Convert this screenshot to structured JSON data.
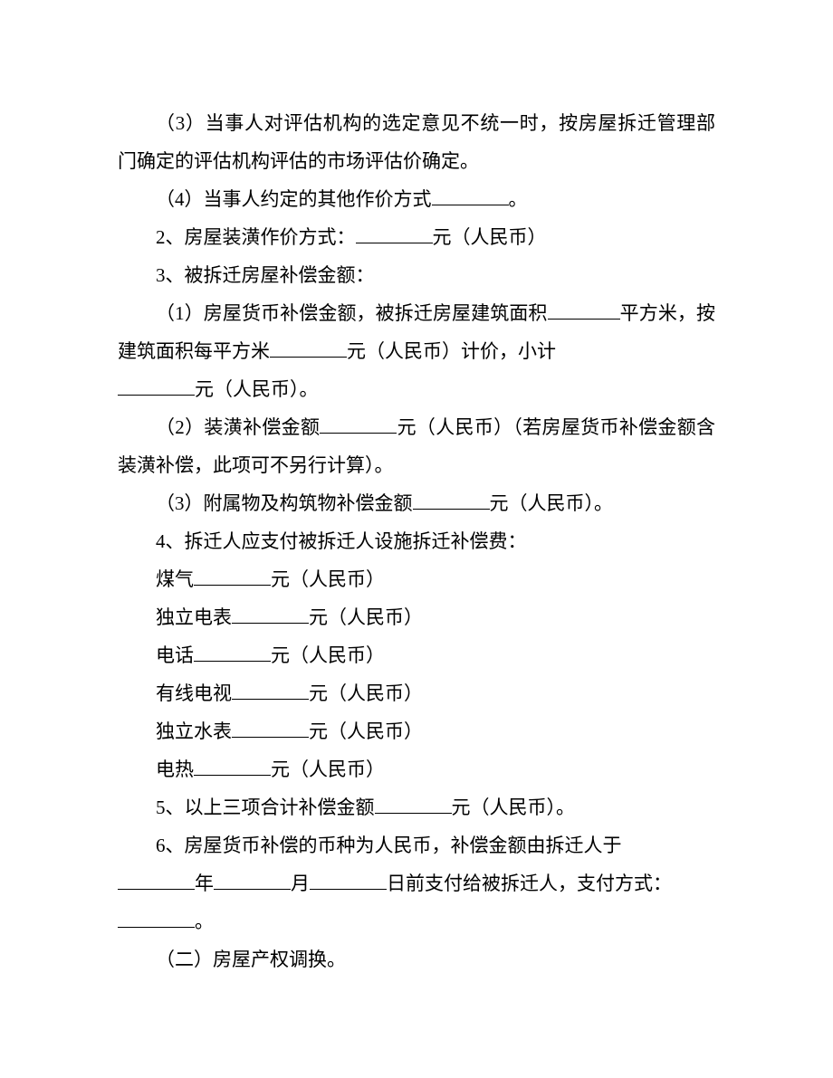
{
  "paragraphs": {
    "p1": "（3）当事人对评估机构的选定意见不统一时，按房屋拆迁管理部门确定的评估机构评估的市场评估价确定。",
    "p2a": "（4）当事人约定的其他作价方式",
    "p2b": "。",
    "p3a": "2、房屋装潢作价方式：",
    "p3b": "元（人民币）",
    "p4": "3、被拆迁房屋补偿金额：",
    "p5a": "（1）房屋货币补偿金额，被拆迁房屋建筑面积",
    "p5b": "平方米，按建筑面积每平方米",
    "p5c": "元（人民币）计价，小计",
    "p5d": "元（人民币）。",
    "p6a": "（2）装潢补偿金额",
    "p6b": "元（人民币）（若房屋货币补偿金额含装潢补偿，此项可不另行计算）。",
    "p7a": "（3）附属物及构筑物补偿金额",
    "p7b": "元（人民币）。",
    "p8": "4、拆迁人应支付被拆迁人设施拆迁补偿费：",
    "p9a": "煤气",
    "p9b": "元（人民币）",
    "p10a": "独立电表",
    "p10b": "元（人民币）",
    "p11a": "电话",
    "p11b": "元（人民币）",
    "p12a": "有线电视",
    "p12b": "元（人民币）",
    "p13a": "独立水表",
    "p13b": "元（人民币）",
    "p14a": "电热",
    "p14b": "元（人民币）",
    "p15a": "5、以上三项合计补偿金额",
    "p15b": "元（人民币）。",
    "p16a": "6、房屋货币补偿的币种为人民币，补偿金额由拆迁人于",
    "p16b": "年",
    "p16c": "月",
    "p16d": "日前支付给被拆迁人，支付方式：",
    "p16e": "。",
    "p17": "（二）房屋产权调换。"
  }
}
